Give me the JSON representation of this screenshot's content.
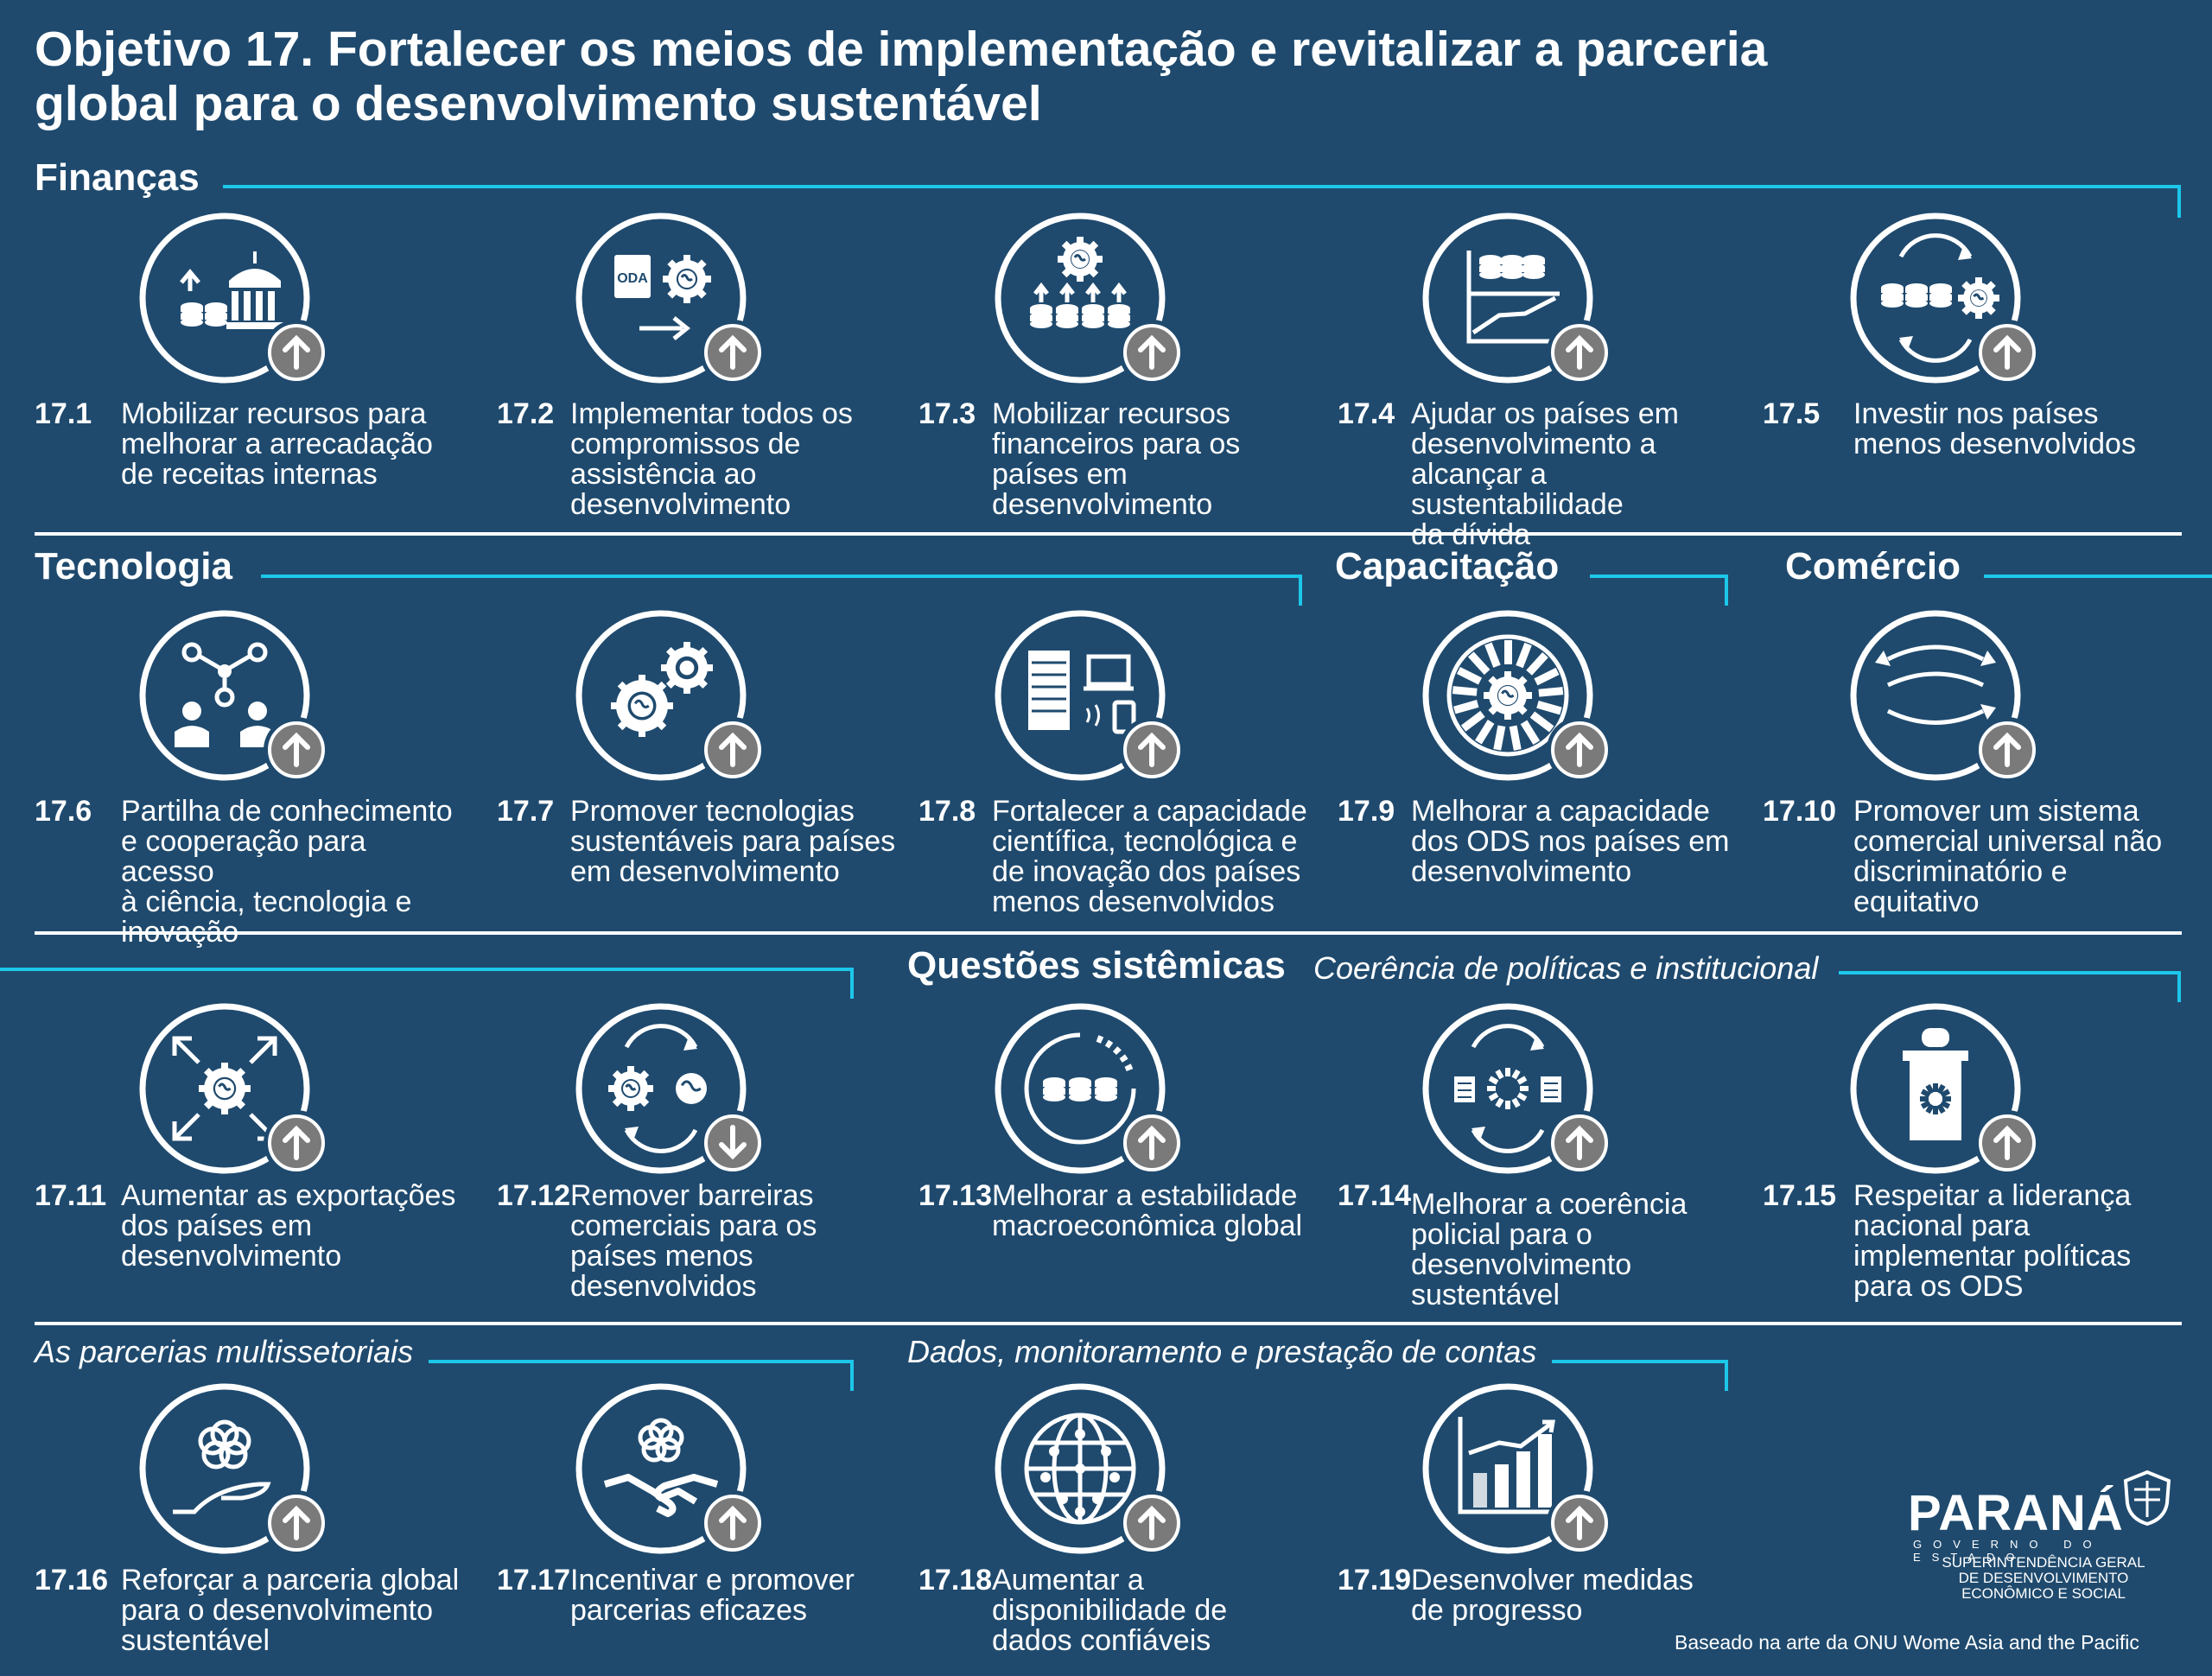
{
  "title": {
    "line1": "Objetivo 17. Fortalecer os meios de implementação e revitalizar a parceria",
    "line2": "global para o desenvolvimento sustentável"
  },
  "sections": {
    "financas": "Finanças",
    "tecnologia": "Tecnologia",
    "capacitacao": "Capacitação",
    "comercio": "Comércio",
    "questoes": "Questões sistêmicas",
    "coerencia": "Coerência de políticas e institucional",
    "parcerias": "As parcerias multissetoriais",
    "dados": "Dados, monitoramento e prestação de contas"
  },
  "targets": [
    {
      "num": "17.1",
      "lines": [
        "Mobilizar recursos para",
        "melhorar a arrecadação",
        "de receitas internas"
      ],
      "arrow": "up",
      "icon": "coins-building-icon"
    },
    {
      "num": "17.2",
      "lines": [
        "Implementar todos os",
        "compromissos de",
        "assistência ao",
        "desenvolvimento"
      ],
      "arrow": "up",
      "icon": "oda-gear-icon"
    },
    {
      "num": "17.3",
      "lines": [
        "Mobilizar recursos",
        "financeiros para os",
        "países em",
        "desenvolvimento"
      ],
      "arrow": "up",
      "icon": "globe-gear-coins-icon"
    },
    {
      "num": "17.4",
      "lines": [
        "Ajudar os países em",
        "desenvolvimento a",
        "alcançar a sustentabilidade",
        "da dívida"
      ],
      "arrow": "up",
      "icon": "coins-chart-icon"
    },
    {
      "num": "17.5",
      "lines": [
        "Investir nos países",
        "menos desenvolvidos"
      ],
      "arrow": "up",
      "icon": "coins-cycle-icon"
    },
    {
      "num": "17.6",
      "lines": [
        "Partilha de conhecimento",
        "e cooperação para acesso",
        "à ciência, tecnologia e",
        "inovação"
      ],
      "arrow": "up",
      "icon": "network-people-icon"
    },
    {
      "num": "17.7",
      "lines": [
        "Promover tecnologias",
        "sustentáveis para países",
        "em desenvolvimento"
      ],
      "arrow": "up",
      "icon": "gears-icon"
    },
    {
      "num": "17.8",
      "lines": [
        "Fortalecer a capacidade",
        "científica, tecnológica e",
        "de inovação dos países",
        "menos desenvolvidos"
      ],
      "arrow": "up",
      "icon": "server-devices-icon"
    },
    {
      "num": "17.9",
      "lines": [
        "Melhorar a capacidade",
        "dos ODS nos países em",
        "desenvolvimento"
      ],
      "arrow": "up",
      "icon": "sdg-wheel-icon"
    },
    {
      "num": "17.10",
      "lines": [
        "Promover um sistema",
        "comercial universal não",
        "discriminatório e",
        "equitativo"
      ],
      "arrow": "up",
      "icon": "trade-arrows-icon"
    },
    {
      "num": "17.11",
      "lines": [
        "Aumentar as exportações",
        "dos países em",
        "desenvolvimento"
      ],
      "arrow": "up",
      "icon": "export-gear-icon"
    },
    {
      "num": "17.12",
      "lines": [
        "Remover barreiras",
        "comerciais para os",
        "países menos",
        "desenvolvidos"
      ],
      "arrow": "down",
      "icon": "gear-globe-cycle-icon"
    },
    {
      "num": "17.13",
      "lines": [
        "Melhorar a estabilidade",
        "macroeconômica global"
      ],
      "arrow": "up",
      "icon": "coins-ring-icon"
    },
    {
      "num": "17.14",
      "lines": [
        "Melhorar a coerência",
        "policial para o",
        "desenvolvimento",
        "sustentável"
      ],
      "arrow": "up",
      "icon": "policy-cycle-icon"
    },
    {
      "num": "17.15",
      "lines": [
        "Respeitar a liderança",
        "nacional para",
        "implementar políticas",
        "para os ODS"
      ],
      "arrow": "up",
      "icon": "podium-icon"
    },
    {
      "num": "17.16",
      "lines": [
        "Reforçar a parceria global",
        "para o desenvolvimento",
        "sustentável"
      ],
      "arrow": "up",
      "icon": "hand-flower-icon"
    },
    {
      "num": "17.17",
      "lines": [
        "Incentivar e promover",
        "parcerias eficazes"
      ],
      "arrow": "up",
      "icon": "handshake-icon"
    },
    {
      "num": "17.18",
      "lines": [
        "Aumentar a",
        "disponibilidade de",
        "dados confiáveis"
      ],
      "arrow": "up",
      "icon": "data-globe-icon"
    },
    {
      "num": "17.19",
      "lines": [
        "Desenvolver medidas",
        "de progresso"
      ],
      "arrow": "up",
      "icon": "bar-chart-icon"
    }
  ],
  "logo": {
    "name": "PARANÁ",
    "tagline": "GOVERNO DO ESTADO",
    "sub1": "SUPERINTENDÊNCIA GERAL",
    "sub2": "DE DESENVOLVIMENTO",
    "sub3": "ECONÔMICO E SOCIAL"
  },
  "credit": "Baseado na arte da ONU Wome Asia and the Pacific",
  "colors": {
    "background": "#1f4a6e",
    "accent_line": "#1cc7ea",
    "arrow_badge": "#7a7a7a",
    "text": "#ffffff"
  }
}
